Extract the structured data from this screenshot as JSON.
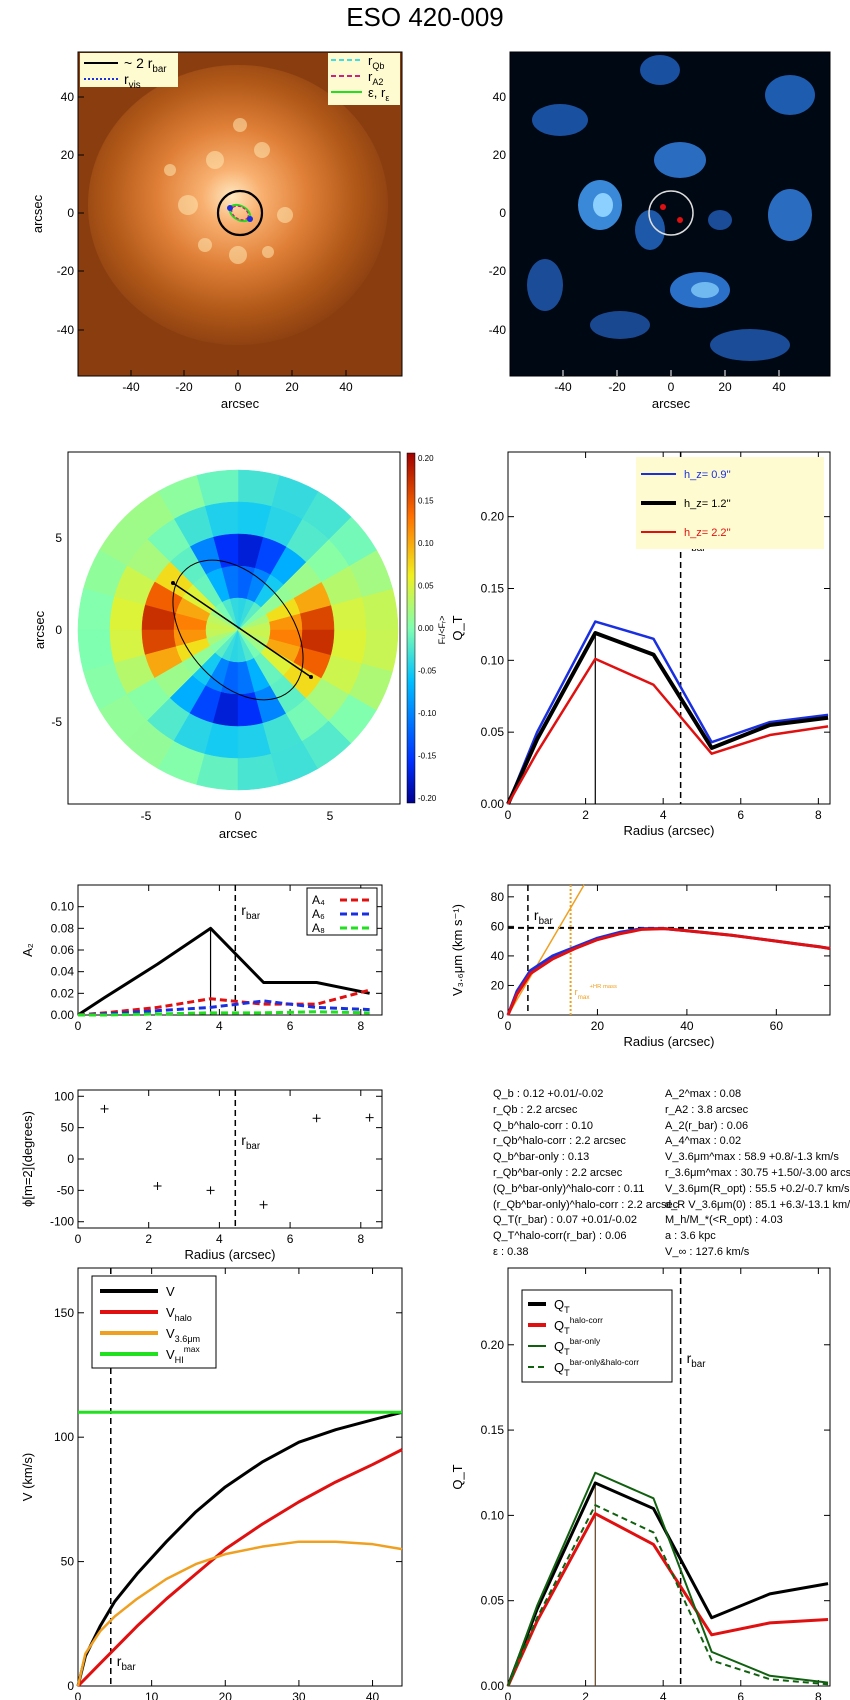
{
  "title": "ESO 420-009",
  "colors": {
    "black": "#000000",
    "blue": "#1a2fe0",
    "red": "#e01010",
    "orange": "#f0a020",
    "green": "#20e020",
    "darkgreen": "#106010",
    "cyan": "#40e0e0",
    "magenta": "#d02080",
    "brown": "#604020"
  },
  "panels": {
    "image1": {
      "xlabel": "arcsec",
      "ylabel": "arcsec",
      "xticks": [
        "-40",
        "-20",
        "0",
        "20",
        "40"
      ],
      "yticks": [
        "40",
        "20",
        "0",
        "-20",
        "-40"
      ],
      "legend_left": [
        {
          "label": "~ 2 r",
          "sub": "bar",
          "color": "#000000",
          "style": "solid"
        },
        {
          "label": "r",
          "sub": "vis",
          "color": "#1a2fe0",
          "style": "dotted"
        }
      ],
      "legend_right": [
        {
          "label": "r",
          "sub": "Qb",
          "color": "#40e0e0",
          "style": "dashed"
        },
        {
          "label": "r",
          "sub": "A2",
          "color": "#d02080",
          "style": "dashed"
        },
        {
          "label": "ε, r",
          "sub": "ε",
          "color": "#20e020",
          "style": "solid"
        }
      ]
    },
    "image2": {
      "xlabel": "arcsec",
      "xticks": [
        "-40",
        "-20",
        "0",
        "20",
        "40"
      ],
      "yticks": [
        "40",
        "20",
        "0",
        "-20",
        "-40"
      ]
    },
    "polar": {
      "xlabel": "arcsec",
      "ylabel": "arcsec",
      "xticks": [
        "-5",
        "0",
        "5"
      ],
      "yticks": [
        "5",
        "0",
        "-5"
      ],
      "colorbar_ticks": [
        "0.20",
        "0.15",
        "0.10",
        "0.05",
        "0.00",
        "-0.05",
        "-0.10",
        "-0.15",
        "-0.20"
      ],
      "colorbar_label": "Fₜ/<Fᵣ>"
    }
  },
  "chart_data": [
    {
      "type": "line",
      "id": "qt",
      "xlabel": "Radius (arcsec)",
      "ylabel": "Q_T",
      "xlim": [
        0,
        8.3
      ],
      "ylim": [
        0,
        0.245
      ],
      "xticks": [
        "0",
        "2",
        "4",
        "6",
        "8"
      ],
      "yticks": [
        "0.00",
        "0.05",
        "0.10",
        "0.15",
        "0.20"
      ],
      "x": [
        0,
        0.75,
        2.25,
        3.75,
        5.25,
        6.75,
        8.25
      ],
      "series": [
        {
          "name": "h_z=  0.9''",
          "color": "#1a2fe0",
          "values": [
            0,
            0.05,
            0.127,
            0.115,
            0.043,
            0.057,
            0.062
          ]
        },
        {
          "name": "h_z=  1.2''",
          "color": "#000000",
          "values": [
            0,
            0.045,
            0.119,
            0.104,
            0.039,
            0.055,
            0.06
          ]
        },
        {
          "name": "h_z=  2.2''",
          "color": "#e01010",
          "values": [
            0,
            0.036,
            0.101,
            0.083,
            0.035,
            0.048,
            0.054
          ]
        }
      ],
      "rbar": 4.45,
      "rbar_label": "r",
      "rbar_sub": "bar",
      "vline_x": 2.25,
      "vline_y": 0.119
    },
    {
      "type": "line",
      "id": "a2",
      "xlabel": "",
      "ylabel": "A₂",
      "xlim": [
        0,
        8.6
      ],
      "ylim": [
        0,
        0.12
      ],
      "xticks": [
        "0",
        "2",
        "4",
        "6",
        "8"
      ],
      "yticks": [
        "0.00",
        "0.02",
        "0.04",
        "0.06",
        "0.08",
        "0.10"
      ],
      "x": [
        0,
        0.75,
        2.25,
        3.75,
        5.25,
        6.75,
        8.25
      ],
      "series": [
        {
          "name": "A2",
          "color": "#000000",
          "values": [
            0,
            0.016,
            0.047,
            0.08,
            0.03,
            0.03,
            0.02
          ]
        },
        {
          "name": "A₄",
          "color": "#e01010",
          "values": [
            0,
            0.002,
            0.007,
            0.015,
            0.01,
            0.01,
            0.023
          ]
        },
        {
          "name": "A₆",
          "color": "#1a2fe0",
          "values": [
            0,
            0.001,
            0.004,
            0.007,
            0.013,
            0.007,
            0.005
          ]
        },
        {
          "name": "A₈",
          "color": "#20e020",
          "values": [
            0,
            0.0,
            0.001,
            0.002,
            0.002,
            0.003,
            0.002
          ]
        }
      ],
      "rbar": 4.45,
      "rbar_label": "r",
      "rbar_sub": "bar",
      "vline_x": 3.75,
      "vline_y": 0.08
    },
    {
      "type": "line",
      "id": "vrot",
      "xlabel": "Radius (arcsec)",
      "ylabel": "V₃.₆μm (km s⁻¹)",
      "xlim": [
        0,
        72
      ],
      "ylim": [
        0,
        88
      ],
      "xticks": [
        "0",
        "20",
        "40",
        "60"
      ],
      "yticks": [
        "0",
        "20",
        "40",
        "60",
        "80"
      ],
      "x": [
        0,
        2,
        5,
        10,
        15,
        20,
        25,
        30,
        35,
        40,
        45,
        50,
        55,
        60,
        65,
        70,
        72
      ],
      "series": [
        {
          "name": "blue",
          "color": "#1a2fe0",
          "values": [
            0,
            16,
            30,
            40,
            46,
            52,
            56,
            58.5,
            58.5,
            57,
            55.5,
            54,
            52,
            50,
            48,
            46,
            45
          ]
        },
        {
          "name": "red",
          "color": "#e01010",
          "values": [
            0,
            14,
            28,
            38,
            45,
            51,
            55,
            58,
            58.5,
            57,
            55.5,
            54,
            52,
            50,
            48,
            46,
            45
          ]
        }
      ],
      "hline_y": 59,
      "rbar": 4.45,
      "rbar_label": "r",
      "rbar_sub": "bar",
      "orange_vline": 14,
      "orange_label": "r",
      "orange_sub": "max",
      "orange_sup": "+HR mass",
      "orange_slope_x": [
        0,
        17
      ],
      "orange_slope_y": [
        0,
        88
      ]
    },
    {
      "type": "scatter",
      "id": "phase",
      "xlabel": "Radius (arcsec)",
      "ylabel": "ϕ[m=2](degrees)",
      "xlim": [
        0,
        8.6
      ],
      "ylim": [
        -110,
        110
      ],
      "xticks": [
        "0",
        "2",
        "4",
        "6",
        "8"
      ],
      "yticks": [
        "100",
        "50",
        "0",
        "-50",
        "-100"
      ],
      "points": [
        [
          0.75,
          80
        ],
        [
          2.25,
          -43
        ],
        [
          3.75,
          -50
        ],
        [
          5.25,
          -73
        ],
        [
          6.75,
          65
        ],
        [
          8.25,
          66
        ]
      ],
      "rbar": 4.45,
      "rbar_label": "r",
      "rbar_sub": "bar"
    },
    {
      "type": "line",
      "id": "vmodel",
      "xlabel": "Radius (arcsec)",
      "ylabel": "V (km/s)",
      "xlim": [
        0,
        44
      ],
      "ylim": [
        0,
        168
      ],
      "xticks": [
        "0",
        "10",
        "20",
        "30",
        "40"
      ],
      "yticks": [
        "0",
        "50",
        "100",
        "150"
      ],
      "x": [
        0,
        1,
        3,
        5,
        8,
        12,
        16,
        20,
        25,
        30,
        35,
        40,
        44
      ],
      "series": [
        {
          "name": "V",
          "sub": "",
          "color": "#000000",
          "values": [
            0,
            12,
            24,
            34,
            45,
            58,
            70,
            80,
            90,
            98,
            103,
            107,
            110
          ]
        },
        {
          "name": "V",
          "sub": "halo",
          "color": "#e01010",
          "values": [
            0,
            3,
            9,
            15,
            24,
            35,
            45,
            55,
            65,
            74,
            82,
            89,
            95
          ]
        },
        {
          "name": "V",
          "sub": "3.6μm",
          "color": "#f0a020",
          "values": [
            0,
            13,
            22,
            28,
            35,
            43,
            49,
            53,
            56,
            58,
            58,
            57,
            55
          ]
        },
        {
          "name": "V",
          "sub": "HI",
          "sup": "max",
          "color": "#20e020",
          "values": [
            110,
            110,
            110,
            110,
            110,
            110,
            110,
            110,
            110,
            110,
            110,
            110,
            110
          ]
        }
      ],
      "rbar": 4.45,
      "rbar_label": "r",
      "rbar_sub": "bar"
    },
    {
      "type": "line",
      "id": "qtcorr",
      "xlabel": "Radius (arcsec)",
      "ylabel": "Q_T",
      "xlim": [
        0,
        8.3
      ],
      "ylim": [
        0,
        0.245
      ],
      "xticks": [
        "0",
        "2",
        "4",
        "6",
        "8"
      ],
      "yticks": [
        "0.00",
        "0.05",
        "0.10",
        "0.15",
        "0.20"
      ],
      "x": [
        0,
        0.75,
        2.25,
        3.75,
        5.25,
        6.75,
        8.25
      ],
      "series": [
        {
          "name": "Q",
          "sub": "T",
          "sup": "",
          "color": "#000000",
          "dash": "",
          "values": [
            0,
            0.045,
            0.119,
            0.104,
            0.04,
            0.054,
            0.06
          ]
        },
        {
          "name": "Q",
          "sub": "T",
          "sup": "halo-corr",
          "color": "#e01010",
          "dash": "",
          "values": [
            0,
            0.038,
            0.101,
            0.083,
            0.03,
            0.037,
            0.039
          ]
        },
        {
          "name": "Q",
          "sub": "T",
          "sup": "bar-only",
          "color": "#106010",
          "dash": "",
          "values": [
            0,
            0.047,
            0.125,
            0.11,
            0.02,
            0.006,
            0.002
          ]
        },
        {
          "name": "Q",
          "sub": "T",
          "sup": "bar-only&halo-corr",
          "color": "#106010",
          "dash": "6,4",
          "values": [
            0,
            0.04,
            0.106,
            0.09,
            0.015,
            0.004,
            0.001
          ]
        }
      ],
      "rbar": 4.45,
      "rbar_label": "r",
      "rbar_sub": "bar",
      "vline_x": 2.25,
      "vline_y": 0.119
    }
  ],
  "params_left": [
    "Q_b :  0.12 +0.01/-0.02",
    "r_Qb :   2.2  arcsec",
    "Q_b^halo-corr :  0.10",
    "r_Qb^halo-corr :  2.2 arcsec",
    "Q_b^bar-only :  0.13",
    "r_Qb^bar-only :  2.2 arcsec",
    "(Q_b^bar-only)^halo-corr :  0.11",
    "(r_Qb^bar-only)^halo-corr :    2.2 arcsec",
    "Q_T(r_bar) :  0.07 +0.01/-0.02",
    "Q_T^halo-corr(r_bar) :  0.06",
    "ε :  0.38"
  ],
  "params_right": [
    "A_2^max :  0.08",
    "r_A2 :   3.8 arcsec",
    "A_2(r_bar) :  0.06",
    "A_4^max :  0.02",
    "V_3.6μm^max :  58.9 +0.8/-1.3 km/s",
    "r_3.6μm^max :  30.75 +1.50/-3.00 arcsec",
    "V_3.6μm(R_opt) :  55.5 +0.2/-0.7 km/s",
    "d_R V_3.6μm(0) :  85.1 +6.3/-13.1 km/s/kpc",
    "M_h/M_*(<R_opt) :  4.03",
    "a :  3.6 kpc",
    "V_∞ :  127.6 km/s"
  ]
}
